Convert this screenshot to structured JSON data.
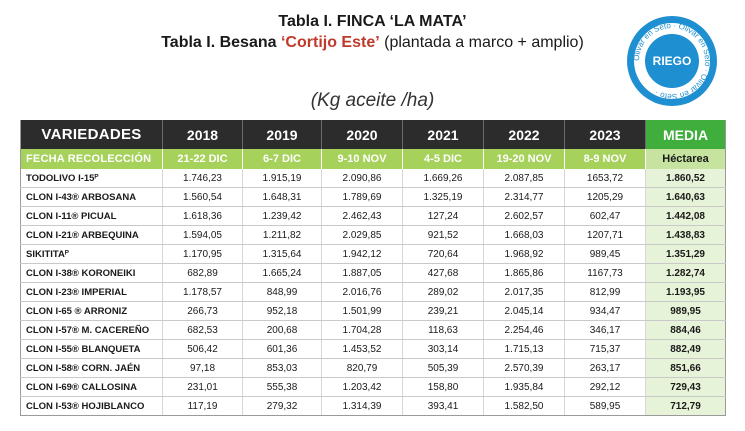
{
  "title": "Tabla I. FINCA ‘LA MATA’",
  "subtitle_prefix": "Tabla I. Besana",
  "subtitle_highlight": "‘Cortijo Este’",
  "subtitle_suffix": "(plantada a marco + amplio)",
  "unit": "(Kg aceite /ha)",
  "badge": {
    "center": "RIEGO",
    "ring_text": "Olivar en Seto · Olivar en Seto · Olivar en Seto ·",
    "colors": {
      "circle": "#1e8fd0",
      "ring": "#ffffff"
    }
  },
  "table": {
    "header": {
      "label": "VARIEDADES",
      "years": [
        "2018",
        "2019",
        "2020",
        "2021",
        "2022",
        "2023"
      ],
      "media": "MEDIA"
    },
    "subheader": {
      "label": "FECHA RECOLECCIÓN",
      "dates": [
        "21-22 DIC",
        "6-7 DIC",
        "9-10 NOV",
        "4-5 DIC",
        "19-20 NOV",
        "8-9 NOV"
      ],
      "media": "Héctarea"
    },
    "rows": [
      {
        "name": "TODOLIVO I-15ᴾ",
        "values": [
          "1.746,23",
          "1.915,19",
          "2.090,86",
          "1.669,26",
          "2.087,85",
          "1653,72"
        ],
        "media": "1.860,52"
      },
      {
        "name": "CLON I-43® ARBOSANA",
        "values": [
          "1.560,54",
          "1.648,31",
          "1.789,69",
          "1.325,19",
          "2.314,77",
          "1205,29"
        ],
        "media": "1.640,63"
      },
      {
        "name": "CLON I-11® PICUAL",
        "values": [
          "1.618,36",
          "1.239,42",
          "2.462,43",
          "127,24",
          "2.602,57",
          "602,47"
        ],
        "media": "1.442,08"
      },
      {
        "name": "CLON I-21® ARBEQUINA",
        "values": [
          "1.594,05",
          "1.211,82",
          "2.029,85",
          "921,52",
          "1.668,03",
          "1207,71"
        ],
        "media": "1.438,83"
      },
      {
        "name": "SIKITITAᴾ",
        "values": [
          "1.170,95",
          "1.315,64",
          "1.942,12",
          "720,64",
          "1.968,92",
          "989,45"
        ],
        "media": "1.351,29"
      },
      {
        "name": "CLON I-38® KORONEIKI",
        "values": [
          "682,89",
          "1.665,24",
          "1.887,05",
          "427,68",
          "1.865,86",
          "1167,73"
        ],
        "media": "1.282,74"
      },
      {
        "name": "CLON I-23® IMPERIAL",
        "values": [
          "1.178,57",
          "848,99",
          "2.016,76",
          "289,02",
          "2.017,35",
          "812,99"
        ],
        "media": "1.193,95"
      },
      {
        "name": "CLON I-65 ® ARRONIZ",
        "values": [
          "266,73",
          "952,18",
          "1.501,99",
          "239,21",
          "2.045,14",
          "934,47"
        ],
        "media": "989,95"
      },
      {
        "name": "CLON I-57® M. CACEREÑO",
        "values": [
          "682,53",
          "200,68",
          "1.704,28",
          "118,63",
          "2.254,46",
          "346,17"
        ],
        "media": "884,46"
      },
      {
        "name": "CLON I-55® BLANQUETA",
        "values": [
          "506,42",
          "601,36",
          "1.453,52",
          "303,14",
          "1.715,13",
          "715,37"
        ],
        "media": "882,49"
      },
      {
        "name": "CLON I-58® CORN. JAÉN",
        "values": [
          "97,18",
          "853,03",
          "820,79",
          "505,39",
          "2.570,39",
          "263,17"
        ],
        "media": "851,66"
      },
      {
        "name": "CLON I-69® CALLOSINA",
        "values": [
          "231,01",
          "555,38",
          "1.203,42",
          "158,80",
          "1.935,84",
          "292,12"
        ],
        "media": "729,43"
      },
      {
        "name": "CLON I-53® HOJIBLANCO",
        "values": [
          "117,19",
          "279,32",
          "1.314,39",
          "393,41",
          "1.582,50",
          "589,95"
        ],
        "media": "712,79"
      }
    ]
  }
}
